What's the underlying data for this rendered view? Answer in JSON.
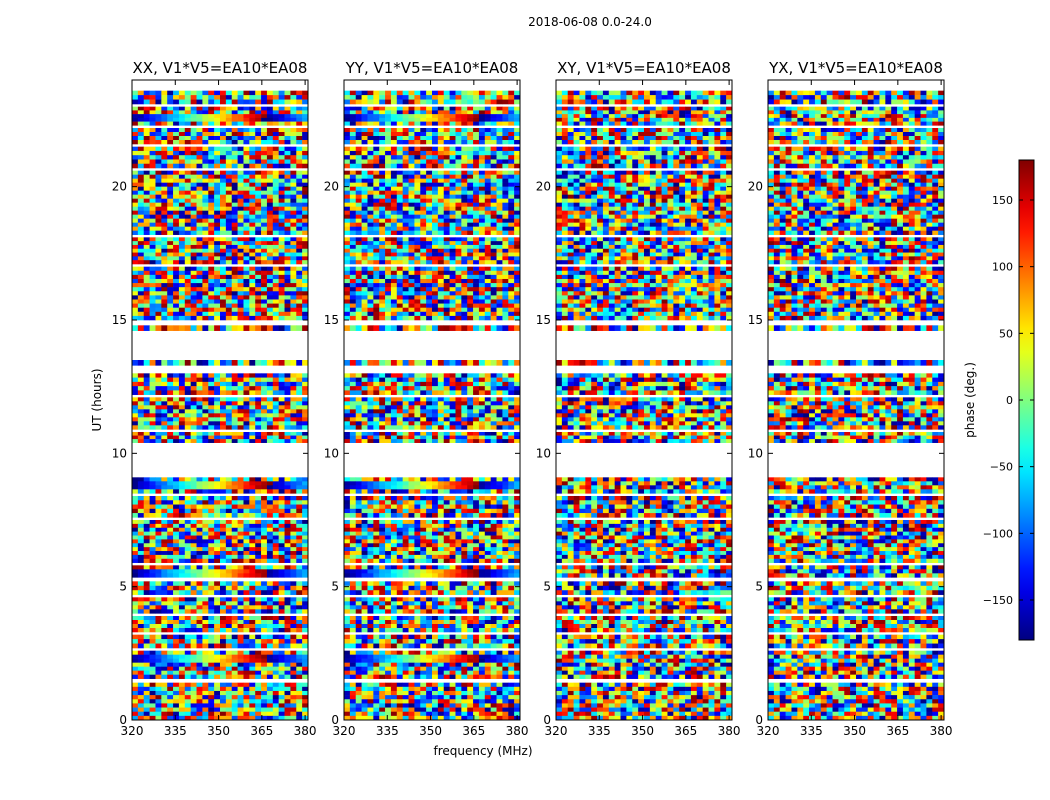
{
  "chart_data": {
    "type": "heatmap",
    "title": "2018-06-08 0.0-24.0",
    "xlabel": "frequency (MHz)",
    "ylabel": "UT (hours)",
    "xlim": [
      320,
      381
    ],
    "ylim": [
      0,
      24
    ],
    "xticks": [
      320,
      335,
      350,
      365,
      380
    ],
    "yticks": [
      0,
      5,
      10,
      15,
      20
    ],
    "colorbar": {
      "label": "phase (deg.)",
      "range": [
        -180,
        180
      ],
      "ticks": [
        -150,
        -100,
        -50,
        0,
        50,
        100,
        150
      ],
      "colormap": "jet"
    },
    "panels": [
      {
        "title": "XX, V1*V5=EA10*EA08"
      },
      {
        "title": "YY, V1*V5=EA10*EA08"
      },
      {
        "title": "XY, V1*V5=EA10*EA08"
      },
      {
        "title": "YX, V1*V5=EA10*EA08"
      }
    ],
    "data_rows_ut_hours": [
      [
        0.0,
        1.4
      ],
      [
        1.55,
        2.6
      ],
      [
        2.7,
        3.2
      ],
      [
        3.3,
        3.9
      ],
      [
        4.0,
        4.6
      ],
      [
        4.7,
        5.2
      ],
      [
        5.35,
        5.8
      ],
      [
        5.9,
        7.5
      ],
      [
        7.6,
        8.4
      ],
      [
        8.5,
        9.1
      ],
      [
        10.4,
        10.8
      ],
      [
        10.9,
        12.1
      ],
      [
        12.2,
        13.0
      ],
      [
        13.3,
        13.5
      ],
      [
        14.6,
        14.8
      ],
      [
        15.0,
        17.0
      ],
      [
        17.1,
        18.1
      ],
      [
        18.2,
        20.6
      ],
      [
        20.7,
        21.5
      ],
      [
        21.6,
        22.2
      ],
      [
        22.3,
        23.0
      ],
      [
        23.1,
        23.6
      ]
    ],
    "structured_bands_ut_hours": [
      2.3,
      5.5,
      8.8,
      22.6
    ]
  }
}
